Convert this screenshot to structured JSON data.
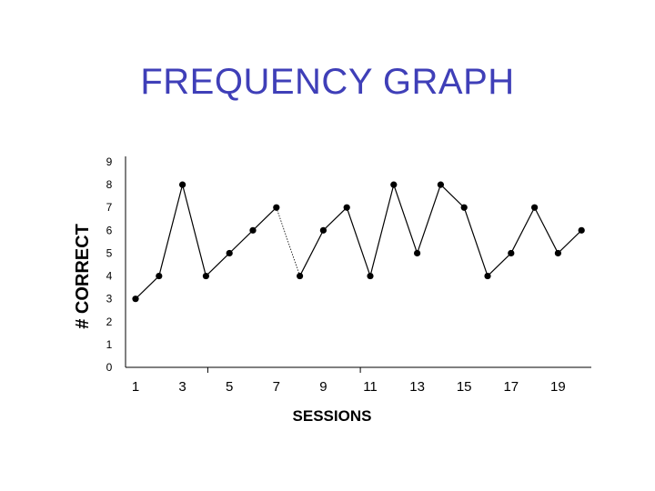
{
  "slide": {
    "title": "FREQUENCY GRAPH",
    "title_color": "#3f3fb8"
  },
  "chart_data": {
    "type": "line",
    "title": "FREQUENCY GRAPH",
    "xlabel": "SESSIONS",
    "ylabel": "# CORRECT",
    "x": [
      1,
      2,
      3,
      4,
      5,
      6,
      7,
      8,
      9,
      10,
      11,
      12,
      13,
      14,
      15,
      16,
      17,
      18,
      19,
      20
    ],
    "xticks": [
      "1",
      "3",
      "5",
      "7",
      "9",
      "11",
      "13",
      "15",
      "17",
      "19"
    ],
    "yticks": [
      "0",
      "1",
      "2",
      "3",
      "4",
      "5",
      "6",
      "7",
      "8",
      "9"
    ],
    "ylim": [
      0,
      9
    ],
    "grid": false,
    "series": [
      {
        "values": [
          3,
          4,
          8,
          4,
          5,
          6,
          7,
          4,
          6,
          7,
          4,
          8,
          5,
          8,
          7,
          4,
          5,
          7,
          5,
          6
        ],
        "color": "#000000",
        "dotted_segment": [
          7,
          8
        ]
      }
    ]
  }
}
